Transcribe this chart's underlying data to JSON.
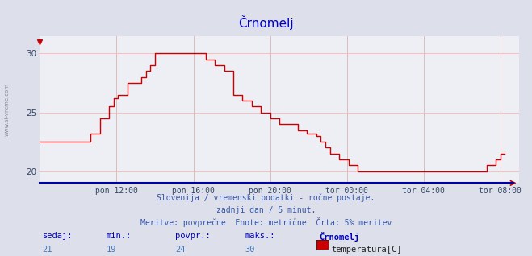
{
  "title": "Črnomelj",
  "title_color": "#0000cc",
  "bg_color": "#dde0ea",
  "plot_bg_color": "#eeeef5",
  "grid_color_h": "#ffbbbb",
  "grid_color_v": "#ddbbbb",
  "line_color": "#cc0000",
  "yticks": [
    20,
    25,
    30
  ],
  "ylim_low": 19.0,
  "ylim_high": 31.5,
  "subtitle1": "Slovenija / vremenski podatki - ročne postaje.",
  "subtitle2": "zadnji dan / 5 minut.",
  "subtitle3": "Meritve: povprečne  Enote: metrične  Črta: 5% meritev",
  "subtitle_color": "#3355aa",
  "footer_label_color": "#0000bb",
  "footer_value_color": "#4477bb",
  "footer_labels": [
    "sedaj:",
    "min.:",
    "povpr.:",
    "maks.:",
    "Črnomelj"
  ],
  "footer_values": [
    "21",
    "19",
    "24",
    "30"
  ],
  "footer_legend": "temperatura[C]",
  "legend_rect_color": "#cc0000",
  "watermark": "www.si-vreme.com",
  "watermark_color": "#888899",
  "xtick_labels": [
    "pon 12:00",
    "pon 16:00",
    "pon 20:00",
    "tor 00:00",
    "tor 04:00",
    "tor 08:00"
  ],
  "xlim_low": 0.0,
  "xlim_high": 1.04,
  "xtick_positions": [
    0.1667,
    0.3333,
    0.5,
    0.6667,
    0.8333,
    1.0
  ],
  "time_data": [
    0.0,
    0.01,
    0.02,
    0.03,
    0.04,
    0.05,
    0.06,
    0.07,
    0.08,
    0.09,
    0.1,
    0.11,
    0.12,
    0.13,
    0.14,
    0.15,
    0.16,
    0.17,
    0.18,
    0.19,
    0.2,
    0.21,
    0.22,
    0.23,
    0.24,
    0.25,
    0.27,
    0.29,
    0.31,
    0.33,
    0.35,
    0.36,
    0.37,
    0.38,
    0.39,
    0.4,
    0.42,
    0.44,
    0.46,
    0.48,
    0.5,
    0.52,
    0.54,
    0.56,
    0.58,
    0.6,
    0.61,
    0.62,
    0.63,
    0.64,
    0.65,
    0.66,
    0.67,
    0.68,
    0.69,
    0.7,
    0.71,
    0.72,
    0.74,
    0.76,
    0.78,
    0.82,
    0.86,
    0.9,
    0.91,
    0.92,
    0.93,
    0.94,
    0.95,
    0.96,
    0.97,
    0.98,
    0.99,
    1.0,
    1.01
  ],
  "temp_data": [
    22.5,
    22.5,
    22.5,
    22.5,
    22.5,
    22.5,
    22.5,
    22.5,
    22.5,
    22.5,
    22.5,
    23.2,
    23.2,
    24.5,
    24.5,
    25.5,
    26.2,
    26.5,
    26.5,
    27.5,
    27.5,
    27.5,
    28.0,
    28.5,
    29.0,
    30.0,
    30.0,
    30.0,
    30.0,
    30.0,
    30.0,
    29.5,
    29.5,
    29.0,
    29.0,
    28.5,
    26.5,
    26.0,
    25.5,
    25.0,
    24.5,
    24.0,
    24.0,
    23.5,
    23.2,
    23.0,
    22.5,
    22.0,
    21.5,
    21.5,
    21.0,
    21.0,
    20.5,
    20.5,
    20.0,
    20.0,
    20.0,
    20.0,
    20.0,
    20.0,
    20.0,
    20.0,
    20.0,
    20.0,
    20.0,
    20.0,
    20.0,
    20.0,
    20.0,
    20.0,
    20.5,
    20.5,
    21.0,
    21.5,
    21.5
  ],
  "figwidth": 6.59,
  "figheight": 3.18,
  "dpi": 100
}
